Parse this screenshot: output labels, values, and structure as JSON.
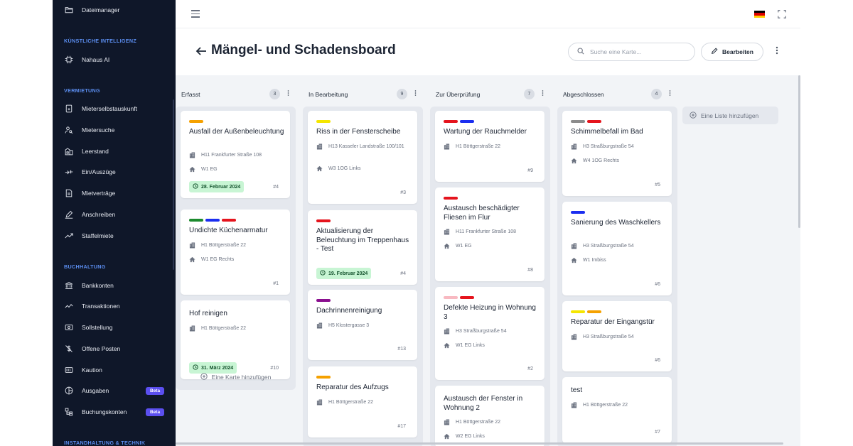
{
  "sidebar": {
    "items": [
      {
        "label": "Dateimanager",
        "icon": "folder-icon"
      },
      {
        "label": "Nahaus AI",
        "icon": "chip-icon"
      },
      {
        "label": "Mieterselbstauskunft",
        "icon": "document-icon"
      },
      {
        "label": "Mietersuche",
        "icon": "person-search-icon"
      },
      {
        "label": "Leerstand",
        "icon": "vacancy-icon"
      },
      {
        "label": "Ein/Auszüge",
        "icon": "move-icon"
      },
      {
        "label": "Mietverträge",
        "icon": "contract-icon"
      },
      {
        "label": "Anschreiben",
        "icon": "pen-icon"
      },
      {
        "label": "Staffelmiete",
        "icon": "trend-icon"
      },
      {
        "label": "Bankkonten",
        "icon": "bank-icon"
      },
      {
        "label": "Transaktionen",
        "icon": "chart-line-icon"
      },
      {
        "label": "Sollstellung",
        "icon": "money-icon"
      },
      {
        "label": "Offene Posten",
        "icon": "dollar-strike-icon"
      },
      {
        "label": "Kaution",
        "icon": "deposit-icon"
      },
      {
        "label": "Ausgaben",
        "icon": "pie-icon",
        "badge": "Beta"
      },
      {
        "label": "Buchungskonten",
        "icon": "accounts-icon",
        "badge": "Beta"
      }
    ],
    "sections": [
      "KÜNSTLICHE INTELLIGENZ",
      "VERMIETUNG",
      "BUCHHALTUNG",
      "INSTANDHALTUNG & TECHNIK"
    ]
  },
  "header": {
    "title": "Mängel- und Schadensboard",
    "search_placeholder": "Suche eine Karte...",
    "edit_label": "Bearbeiten"
  },
  "colors": {
    "orange": "#f5a100",
    "yellow": "#f5e600",
    "red": "#e5141d",
    "blue": "#1b2ef0",
    "green": "#1c8a2e",
    "purple": "#8a0f8f",
    "pink": "#f8b9c1",
    "gray": "#8c8c8c"
  },
  "board": {
    "add_list_label": "Eine Liste hinzufügen",
    "add_card_label": "Eine Karte hinzufügen",
    "lists": [
      {
        "title": "Erfasst",
        "count": "3",
        "cards": [
          {
            "labels": [
              "orange"
            ],
            "title": "Ausfall der Außenbeleuchtung",
            "building": "H11 Frankfurter Straße 108",
            "unit": "W1 EG",
            "due": "28. Februar 2024",
            "num": "#4"
          },
          {
            "labels": [
              "green",
              "blue",
              "red"
            ],
            "title": "Undichte Küchenarmatur",
            "building": "H1 Böttgerstraße 22",
            "unit": "W1 EG Rechts",
            "due": "",
            "num": "#1"
          },
          {
            "labels": [],
            "title": "Hof reinigen",
            "building": "H1 Böttgerstraße 22",
            "unit": "",
            "due": "31. März 2024",
            "num": "#10"
          }
        ]
      },
      {
        "title": "In Bearbeitung",
        "count": "9",
        "cards": [
          {
            "labels": [
              "yellow"
            ],
            "title": "Riss in der Fensterscheibe",
            "building": "H13 Kasseler Landstraße 100/101",
            "unit": "W3 1OG Links",
            "due": "",
            "num": "#3"
          },
          {
            "labels": [
              "red"
            ],
            "title": "Aktualisierung der Beleuchtung im Treppenhaus - Test",
            "building": "",
            "unit": "",
            "due": "19. Februar 2024",
            "num": "#4"
          },
          {
            "labels": [
              "purple"
            ],
            "title": "Dachrinnenreinigung",
            "building": "H5 Klostergasse 3",
            "unit": "",
            "due": "",
            "num": "#13"
          },
          {
            "labels": [
              "orange"
            ],
            "title": "Reparatur des Aufzugs",
            "building": "H1 Böttgerstraße 22",
            "unit": "",
            "due": "",
            "num": "#17"
          }
        ]
      },
      {
        "title": "Zur Überprüfung",
        "count": "7",
        "cards": [
          {
            "labels": [
              "red",
              "blue"
            ],
            "title": "Wartung der Rauchmelder",
            "building": "H1 Böttgerstraße 22",
            "unit": "",
            "due": "",
            "num": "#9"
          },
          {
            "labels": [
              "red"
            ],
            "title": "Austausch beschädigter Fliesen im Flur",
            "building": "H11 Frankfurter Straße 108",
            "unit": "W1 EG",
            "due": "",
            "num": "#8"
          },
          {
            "labels": [
              "pink",
              "red"
            ],
            "title": "Defekte Heizung in Wohnung 3",
            "building": "H3 Straßburgstraße 54",
            "unit": "W1 EG Links",
            "due": "",
            "num": "#2"
          },
          {
            "labels": [],
            "title": "Austausch der Fenster in Wohnung 2",
            "building": "H1 Böttgerstraße 22",
            "unit": "W2 EG Links",
            "due": "",
            "num": ""
          }
        ]
      },
      {
        "title": "Abgeschlossen",
        "count": "4",
        "cards": [
          {
            "labels": [
              "gray",
              "red"
            ],
            "title": "Schimmelbefall im Bad",
            "building": "H3 Straßburgstraße 54",
            "unit": "W4 1OG Rechts",
            "due": "",
            "num": "#5"
          },
          {
            "labels": [
              "blue"
            ],
            "title": "Sanierung des Waschkellers",
            "building": "H3 Straßburgstraße 54",
            "unit": "W1 Imbiss",
            "due": "",
            "num": "#6"
          },
          {
            "labels": [
              "yellow",
              "orange"
            ],
            "title": "Reparatur der Eingangstür",
            "building": "H3 Straßburgstraße 54",
            "unit": "",
            "due": "",
            "num": "#6"
          },
          {
            "labels": [],
            "title": "test",
            "building": "H1 Böttgerstraße 22",
            "unit": "",
            "due": "",
            "num": "#7"
          }
        ]
      }
    ]
  }
}
